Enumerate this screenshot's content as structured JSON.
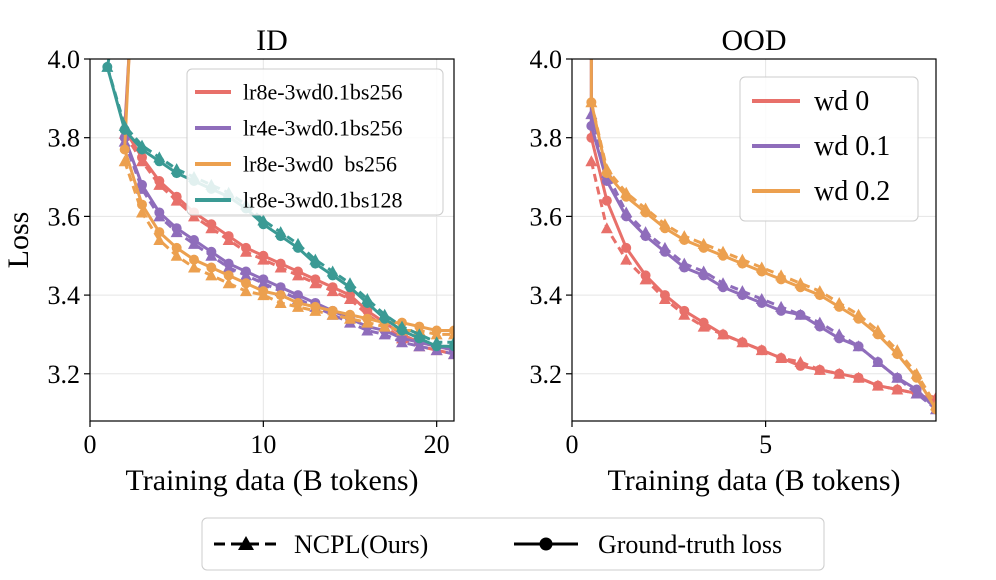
{
  "chart_data": [
    {
      "type": "line",
      "title": "ID",
      "xlabel": "Training data (B tokens)",
      "ylabel": "Loss",
      "xlim": [
        0,
        21
      ],
      "ylim": [
        3.08,
        4.0
      ],
      "xticks": [
        0,
        10,
        20
      ],
      "yticks": [
        3.2,
        3.4,
        3.6,
        3.8,
        4.0
      ],
      "xtick_labels": [
        "0",
        "10",
        "20"
      ],
      "ytick_labels": [
        "3.2",
        "3.4",
        "3.6",
        "3.8",
        "4.0"
      ],
      "grid": true,
      "legend_position": "top-right",
      "series": [
        {
          "name": "lr8e-3wd0.1bs256",
          "color": "#e8706a",
          "x": [
            2,
            3,
            4,
            5,
            6,
            7,
            8,
            9,
            10,
            11,
            12,
            13,
            14,
            15,
            16,
            17,
            18,
            19,
            20,
            21
          ],
          "truth": [
            3.82,
            3.75,
            3.69,
            3.65,
            3.61,
            3.58,
            3.55,
            3.52,
            3.5,
            3.48,
            3.46,
            3.44,
            3.42,
            3.4,
            3.36,
            3.33,
            3.3,
            3.28,
            3.27,
            3.26
          ],
          "pred": [
            3.81,
            3.74,
            3.68,
            3.64,
            3.6,
            3.57,
            3.54,
            3.51,
            3.49,
            3.47,
            3.45,
            3.43,
            3.41,
            3.39,
            3.35,
            3.32,
            3.29,
            3.27,
            3.26,
            3.25
          ]
        },
        {
          "name": "lr4e-3wd0.1bs256",
          "color": "#8f6dbb",
          "x": [
            2,
            3,
            4,
            5,
            6,
            7,
            8,
            9,
            10,
            11,
            12,
            13,
            14,
            15,
            16,
            17,
            18,
            19,
            20,
            21
          ],
          "truth": [
            3.8,
            3.68,
            3.61,
            3.57,
            3.54,
            3.51,
            3.48,
            3.46,
            3.44,
            3.42,
            3.4,
            3.38,
            3.36,
            3.34,
            3.32,
            3.31,
            3.29,
            3.28,
            3.27,
            3.26
          ],
          "pred": [
            3.79,
            3.67,
            3.6,
            3.56,
            3.53,
            3.5,
            3.47,
            3.45,
            3.43,
            3.41,
            3.39,
            3.37,
            3.35,
            3.33,
            3.31,
            3.3,
            3.28,
            3.27,
            3.26,
            3.25
          ]
        },
        {
          "name": "lr8e-3wd0  bs256",
          "color": "#eca04f",
          "x": [
            2,
            3,
            4,
            5,
            6,
            7,
            8,
            9,
            10,
            11,
            12,
            13,
            14,
            15,
            16,
            17,
            18,
            19,
            20,
            21
          ],
          "truth": [
            3.77,
            3.63,
            3.56,
            3.52,
            3.49,
            3.47,
            3.45,
            3.43,
            3.41,
            3.4,
            3.38,
            3.37,
            3.36,
            3.35,
            3.34,
            3.33,
            3.33,
            3.32,
            3.31,
            3.31
          ],
          "pred": [
            3.74,
            3.61,
            3.54,
            3.5,
            3.47,
            3.45,
            3.43,
            3.41,
            3.4,
            3.38,
            3.37,
            3.36,
            3.35,
            3.34,
            3.33,
            3.32,
            3.31,
            3.31,
            3.3,
            3.3
          ]
        },
        {
          "name": "lr8e-3wd0.1bs128",
          "color": "#3a9a94",
          "x": [
            1,
            2,
            3,
            4,
            5,
            6,
            7,
            8,
            9,
            10,
            11,
            12,
            13,
            14,
            15,
            16,
            17,
            18,
            19,
            20,
            21
          ],
          "truth": [
            3.98,
            3.82,
            3.77,
            3.74,
            3.71,
            3.69,
            3.67,
            3.65,
            3.62,
            3.58,
            3.55,
            3.52,
            3.48,
            3.45,
            3.42,
            3.38,
            3.34,
            3.31,
            3.29,
            3.27,
            3.27
          ],
          "pred": [
            3.98,
            3.83,
            3.78,
            3.75,
            3.72,
            3.7,
            3.68,
            3.66,
            3.63,
            3.59,
            3.56,
            3.53,
            3.49,
            3.46,
            3.43,
            3.39,
            3.35,
            3.32,
            3.3,
            3.28,
            3.28
          ]
        }
      ]
    },
    {
      "type": "line",
      "title": "OOD",
      "xlabel": "Training data (B tokens)",
      "ylabel": "",
      "xlim": [
        0,
        9.4
      ],
      "ylim": [
        3.08,
        4.0
      ],
      "xticks": [
        0,
        5
      ],
      "yticks": [
        3.2,
        3.4,
        3.6,
        3.8,
        4.0
      ],
      "xtick_labels": [
        "0",
        "5"
      ],
      "ytick_labels": [
        "3.2",
        "3.4",
        "3.6",
        "3.8",
        "4.0"
      ],
      "grid": true,
      "legend_position": "top-right",
      "series": [
        {
          "name": "wd 0",
          "color": "#e8706a",
          "x": [
            0.5,
            0.9,
            1.4,
            1.9,
            2.4,
            2.9,
            3.4,
            3.9,
            4.4,
            4.9,
            5.4,
            5.9,
            6.4,
            6.9,
            7.4,
            7.9,
            8.4,
            8.9,
            9.4
          ],
          "truth": [
            3.8,
            3.64,
            3.52,
            3.45,
            3.4,
            3.36,
            3.33,
            3.3,
            3.28,
            3.26,
            3.24,
            3.22,
            3.21,
            3.2,
            3.19,
            3.17,
            3.16,
            3.15,
            3.13
          ],
          "pred": [
            3.74,
            3.57,
            3.49,
            3.44,
            3.39,
            3.35,
            3.32,
            3.3,
            3.28,
            3.26,
            3.24,
            3.23,
            3.21,
            3.2,
            3.19,
            3.17,
            3.16,
            3.15,
            3.14
          ]
        },
        {
          "name": "wd 0.1",
          "color": "#8f6dbb",
          "x": [
            0.5,
            0.9,
            1.4,
            1.9,
            2.4,
            2.9,
            3.4,
            3.9,
            4.4,
            4.9,
            5.4,
            5.9,
            6.4,
            6.9,
            7.4,
            7.9,
            8.4,
            8.9,
            9.4
          ],
          "truth": [
            3.83,
            3.69,
            3.6,
            3.55,
            3.51,
            3.47,
            3.45,
            3.42,
            3.4,
            3.38,
            3.36,
            3.35,
            3.32,
            3.29,
            3.27,
            3.23,
            3.19,
            3.16,
            3.11
          ],
          "pred": [
            3.86,
            3.71,
            3.61,
            3.56,
            3.52,
            3.48,
            3.46,
            3.43,
            3.41,
            3.39,
            3.37,
            3.35,
            3.33,
            3.3,
            3.27,
            3.23,
            3.19,
            3.15,
            3.11
          ]
        },
        {
          "name": "wd 0.2",
          "color": "#eca04f",
          "x": [
            0.5,
            0.9,
            1.4,
            1.9,
            2.4,
            2.9,
            3.4,
            3.9,
            4.4,
            4.9,
            5.4,
            5.9,
            6.4,
            6.9,
            7.4,
            7.9,
            8.4,
            8.9,
            9.4
          ],
          "truth": [
            3.89,
            3.71,
            3.65,
            3.61,
            3.57,
            3.54,
            3.52,
            3.5,
            3.48,
            3.46,
            3.44,
            3.42,
            3.4,
            3.37,
            3.34,
            3.3,
            3.25,
            3.19,
            3.11
          ],
          "pred": [
            3.89,
            3.72,
            3.66,
            3.62,
            3.58,
            3.55,
            3.53,
            3.51,
            3.49,
            3.47,
            3.45,
            3.43,
            3.41,
            3.38,
            3.35,
            3.31,
            3.26,
            3.2,
            3.12
          ]
        }
      ]
    }
  ],
  "bottom_legend": {
    "pred_label": "NCPL(Ours)",
    "truth_label": "Ground-truth loss"
  }
}
